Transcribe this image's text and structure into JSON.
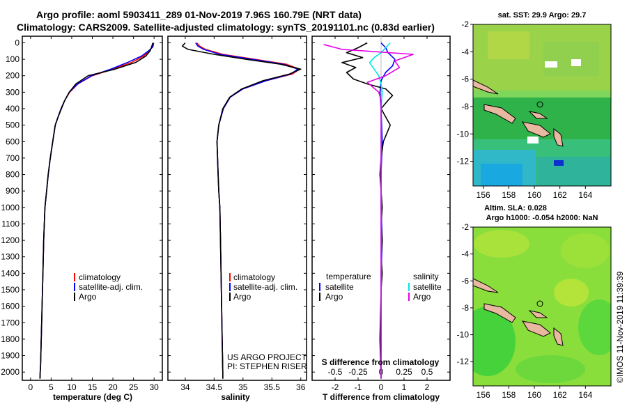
{
  "title": {
    "line1": "Argo profile: aoml 5903411_289 01-Nov-2019 7.96S 160.79E (NRT data)",
    "line2": "Climatology: CARS2009. Satellite-adjusted climatology: synTS_20191101.nc (0.83d earlier)"
  },
  "colors": {
    "climatology": "#ff0000",
    "satellite": "#0000ff",
    "argo": "#000000",
    "sat_s": "#00e5e5",
    "argo_s": "#e600e6"
  },
  "depth_ticks": [
    "0",
    "100",
    "200",
    "300",
    "400",
    "500",
    "600",
    "700",
    "800",
    "900",
    "1000",
    "1100",
    "1200",
    "1300",
    "1400",
    "1500",
    "1600",
    "1700",
    "1800",
    "1900",
    "2000"
  ],
  "chart_data": [
    {
      "type": "line",
      "xlabel": "temperature (deg C)",
      "xlim": [
        -2,
        32
      ],
      "ylim": [
        2050,
        -40
      ],
      "xticks": [
        "0",
        "5",
        "10",
        "15",
        "20",
        "25",
        "30"
      ],
      "legend": [
        "climatology",
        "satellite-adj. clim.",
        "Argo"
      ],
      "series": [
        {
          "name": "climatology",
          "x": [
            29.8,
            29.6,
            28.8,
            27.5,
            24.5,
            20.0,
            15.0,
            11.5,
            9.5,
            8.3,
            7.4,
            6.7,
            6.0,
            5.4,
            4.8,
            4.3,
            3.9,
            3.5,
            3.2,
            3.0,
            2.8,
            2.6,
            2.45,
            2.35,
            2.3
          ],
          "y": [
            0,
            25,
            50,
            80,
            120,
            160,
            200,
            250,
            300,
            350,
            400,
            450,
            500,
            600,
            700,
            800,
            900,
            1000,
            1200,
            1400,
            1600,
            1800,
            1950,
            2000,
            2040
          ]
        },
        {
          "name": "satellite-adj. clim.",
          "x": [
            29.9,
            29.7,
            28.6,
            27.0,
            23.5,
            19.5,
            14.8,
            11.4,
            9.4,
            8.3,
            7.4,
            6.7,
            6.0,
            5.4,
            4.8,
            4.3,
            3.9,
            3.5,
            3.2,
            3.0,
            2.8,
            2.6,
            2.45,
            2.35,
            2.3
          ],
          "y": [
            0,
            25,
            50,
            80,
            120,
            160,
            200,
            250,
            300,
            350,
            400,
            450,
            500,
            600,
            700,
            800,
            900,
            1000,
            1200,
            1400,
            1600,
            1800,
            1950,
            2000,
            2040
          ]
        },
        {
          "name": "Argo",
          "x": [
            29.7,
            29.4,
            29.0,
            28.0,
            25.5,
            20.5,
            14.0,
            11.0,
            9.4,
            8.3,
            7.5,
            6.7,
            6.0,
            5.4,
            4.8,
            4.3,
            3.9,
            3.5,
            3.2,
            3.0,
            2.8,
            2.6,
            2.45,
            2.35,
            2.3
          ],
          "y": [
            0,
            25,
            50,
            80,
            120,
            160,
            200,
            250,
            300,
            350,
            400,
            450,
            500,
            600,
            700,
            800,
            900,
            1000,
            1200,
            1400,
            1600,
            1800,
            1950,
            2000,
            2040
          ]
        }
      ]
    },
    {
      "type": "line",
      "xlabel": "salinity",
      "xlim": [
        33.7,
        36.1
      ],
      "ylim": [
        2050,
        -40
      ],
      "xticks": [
        "34",
        "34.5",
        "35",
        "35.5",
        "36"
      ],
      "legend": [
        "climatology",
        "satellite-adj. clim.",
        "Argo"
      ],
      "annotation": [
        "US ARGO PROJECT",
        "PI: STEPHEN RISER"
      ],
      "series": [
        {
          "name": "climatology",
          "x": [
            34.2,
            34.25,
            34.35,
            34.65,
            35.2,
            35.75,
            35.98,
            35.85,
            35.4,
            35.0,
            34.78,
            34.66,
            34.58,
            34.55,
            34.56,
            34.57,
            34.58,
            34.6,
            34.61,
            34.62,
            34.63,
            34.64,
            34.65,
            34.65
          ],
          "y": [
            0,
            20,
            40,
            70,
            100,
            130,
            160,
            190,
            230,
            280,
            330,
            400,
            500,
            600,
            700,
            800,
            900,
            1000,
            1200,
            1400,
            1600,
            1800,
            2000,
            2040
          ]
        },
        {
          "name": "satellite-adj. clim.",
          "x": [
            34.18,
            34.22,
            34.32,
            34.6,
            35.15,
            35.7,
            35.95,
            35.82,
            35.4,
            35.0,
            34.78,
            34.66,
            34.58,
            34.55,
            34.56,
            34.57,
            34.58,
            34.6,
            34.61,
            34.62,
            34.63,
            34.64,
            34.65,
            34.65
          ],
          "y": [
            0,
            20,
            40,
            70,
            100,
            130,
            160,
            190,
            230,
            280,
            330,
            400,
            500,
            600,
            700,
            800,
            900,
            1000,
            1200,
            1400,
            1600,
            1800,
            2000,
            2040
          ]
        },
        {
          "name": "Argo",
          "x": [
            34.0,
            33.95,
            34.05,
            34.5,
            35.05,
            35.65,
            36.0,
            35.8,
            35.35,
            34.98,
            34.77,
            34.65,
            34.58,
            34.55,
            34.56,
            34.57,
            34.58,
            34.6,
            34.61,
            34.62,
            34.63,
            34.64,
            34.65,
            34.65
          ],
          "y": [
            0,
            20,
            40,
            70,
            100,
            130,
            160,
            190,
            230,
            280,
            330,
            400,
            500,
            600,
            700,
            800,
            900,
            1000,
            1200,
            1400,
            1600,
            1800,
            2000,
            2040
          ]
        }
      ]
    },
    {
      "type": "line",
      "xlabel": "T difference from climatology",
      "secondary_axis_label": "S difference from climatology",
      "xlim": [
        -3,
        3
      ],
      "ylim": [
        2050,
        -40
      ],
      "xticks": [
        "-2",
        "-1",
        "0",
        "1",
        "2"
      ],
      "secondary_ticks": [
        "-0.5",
        "-0.25",
        "0",
        "0.25",
        "0.5"
      ],
      "legend_t": [
        "temperature",
        "satellite",
        "Argo"
      ],
      "legend_s": [
        "salinity",
        "satellite",
        "Argo"
      ],
      "series": [
        {
          "name": "satellite T",
          "x": [
            0,
            0.2,
            0.3,
            0.6,
            0.5,
            0.2,
            0.0,
            -0.05,
            0.0,
            0.05,
            0.0,
            0.0,
            0.05,
            0.0,
            0.0,
            0.0,
            0.0,
            0.0
          ],
          "y": [
            0,
            30,
            60,
            100,
            140,
            180,
            230,
            300,
            400,
            600,
            800,
            1000,
            1200,
            1400,
            1600,
            1800,
            1950,
            2040
          ]
        },
        {
          "name": "Argo T",
          "x": [
            -0.6,
            -1.0,
            -1.5,
            -0.8,
            -1.7,
            -1.1,
            -1.5,
            -1.2,
            -0.6,
            0.2,
            0.5,
            0.3,
            0.0,
            0.4,
            0.1,
            0.0,
            -0.05,
            0.0,
            0.05,
            0.0,
            0.05,
            0.0,
            0.05,
            0.0,
            -0.05,
            0.0
          ],
          "y": [
            0,
            30,
            60,
            90,
            120,
            150,
            180,
            220,
            250,
            280,
            320,
            350,
            400,
            500,
            600,
            700,
            800,
            900,
            1000,
            1100,
            1200,
            1300,
            1400,
            1500,
            1800,
            2040
          ]
        },
        {
          "name": "satellite S",
          "x": [
            0.4,
            0.2,
            0.0,
            -0.3,
            -0.5,
            -0.3,
            -0.1,
            0.0,
            0.05,
            0.0,
            0.0,
            0.0,
            0.0,
            0.0,
            0.0,
            0.0,
            0.0
          ],
          "y": [
            0,
            30,
            60,
            90,
            120,
            160,
            200,
            250,
            300,
            400,
            600,
            800,
            1000,
            1200,
            1500,
            1800,
            2040
          ]
        },
        {
          "name": "Argo S",
          "x": [
            -2.5,
            -1.7,
            1.4,
            0.6,
            0.8,
            0.2,
            -0.6,
            -0.1,
            0.0,
            0.0,
            0.0,
            0.0,
            0.0,
            0.0,
            0.0,
            0.0
          ],
          "y": [
            10,
            40,
            70,
            110,
            150,
            200,
            240,
            300,
            350,
            450,
            600,
            800,
            1000,
            1300,
            1600,
            2040
          ]
        }
      ]
    }
  ],
  "maps": {
    "top": {
      "title": "sat. SST: 29.9 Argo: 29.7",
      "xticks": [
        "156",
        "158",
        "160",
        "162",
        "164"
      ],
      "yticks": [
        "-2",
        "-4",
        "-6",
        "-8",
        "-10",
        "-12"
      ]
    },
    "bottom": {
      "title1": "Altim. SLA: 0.028",
      "title2": "Argo h1000: -0.054 h2000: NaN",
      "xticks": [
        "156",
        "158",
        "160",
        "162",
        "164"
      ],
      "yticks": [
        "-2",
        "-4",
        "-6",
        "-8",
        "-10",
        "-12"
      ]
    }
  },
  "footer": "©IMOS 11-Nov-2019 11:39:39"
}
